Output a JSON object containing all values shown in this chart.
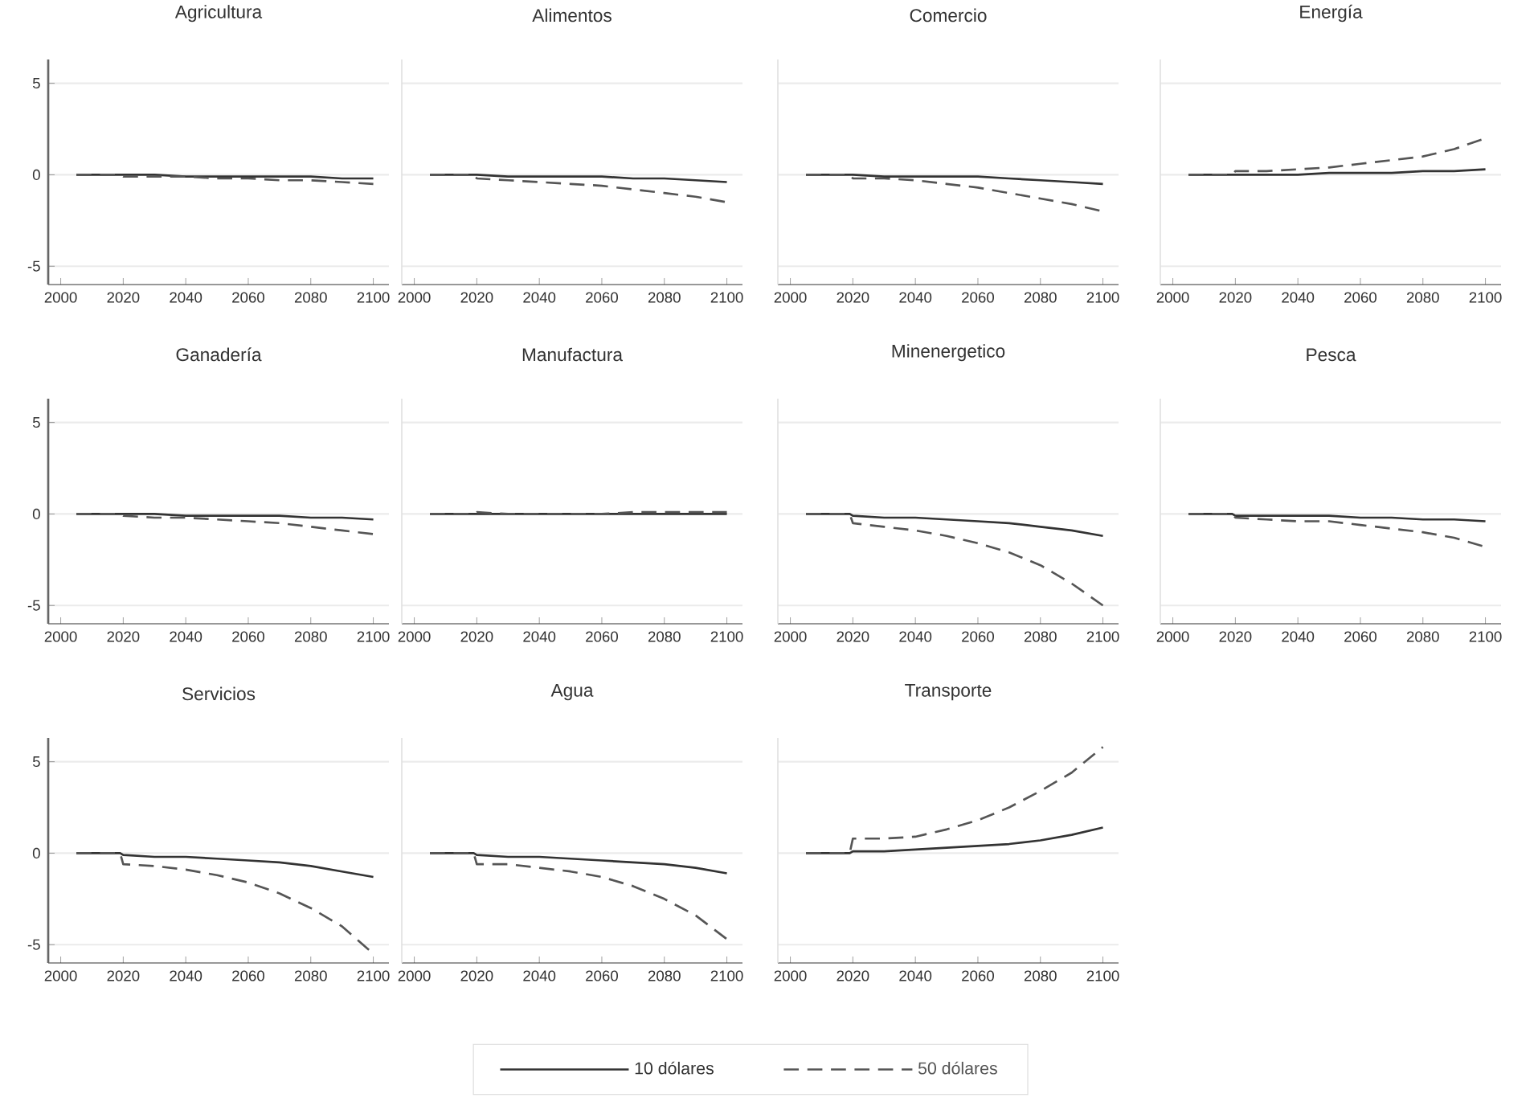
{
  "chart_data": [
    {
      "type": "line",
      "title": "Agricultura",
      "x": [
        2005,
        2019,
        2020,
        2030,
        2040,
        2050,
        2060,
        2070,
        2080,
        2090,
        2100
      ],
      "xlim": [
        1996,
        2105
      ],
      "ylim": [
        -6,
        6.3
      ],
      "xticks": [
        2000,
        2020,
        2040,
        2060,
        2080,
        2100
      ],
      "yticks": [
        -5,
        0,
        5
      ],
      "grid": "y",
      "series": [
        {
          "color": "#333333",
          "line_style": "solid",
          "values": [
            0,
            0,
            0,
            0,
            -0.1,
            -0.1,
            -0.1,
            -0.1,
            -0.1,
            -0.2,
            -0.2
          ]
        },
        {
          "color": "#555555",
          "line_style": "dashed",
          "values": [
            0,
            0,
            -0.1,
            -0.1,
            -0.1,
            -0.2,
            -0.2,
            -0.3,
            -0.3,
            -0.4,
            -0.5
          ]
        }
      ]
    },
    {
      "type": "line",
      "title": "Alimentos",
      "x": [
        2005,
        2019,
        2020,
        2030,
        2040,
        2050,
        2060,
        2070,
        2080,
        2090,
        2100
      ],
      "xlim": [
        1996,
        2105
      ],
      "ylim": [
        -6,
        6.3
      ],
      "xticks": [
        2000,
        2020,
        2040,
        2060,
        2080,
        2100
      ],
      "yticks": [
        -5,
        0,
        5
      ],
      "grid": "y",
      "tick_labels": "x",
      "series": [
        {
          "color": "#333333",
          "line_style": "solid",
          "values": [
            0,
            0,
            0,
            -0.1,
            -0.1,
            -0.1,
            -0.1,
            -0.2,
            -0.2,
            -0.3,
            -0.4
          ]
        },
        {
          "color": "#555555",
          "line_style": "dashed",
          "values": [
            0,
            0,
            -0.2,
            -0.3,
            -0.4,
            -0.5,
            -0.6,
            -0.8,
            -1.0,
            -1.2,
            -1.5
          ]
        }
      ]
    },
    {
      "type": "line",
      "title": "Comercio",
      "x": [
        2005,
        2019,
        2020,
        2030,
        2040,
        2050,
        2060,
        2070,
        2080,
        2090,
        2100
      ],
      "xlim": [
        1996,
        2105
      ],
      "ylim": [
        -6,
        6.3
      ],
      "xticks": [
        2000,
        2020,
        2040,
        2060,
        2080,
        2100
      ],
      "yticks": [
        -5,
        0,
        5
      ],
      "grid": "y",
      "tick_labels": "x",
      "series": [
        {
          "color": "#333333",
          "line_style": "solid",
          "values": [
            0,
            0,
            0,
            -0.1,
            -0.1,
            -0.1,
            -0.1,
            -0.2,
            -0.3,
            -0.4,
            -0.5
          ]
        },
        {
          "color": "#555555",
          "line_style": "dashed",
          "values": [
            0,
            0,
            -0.2,
            -0.2,
            -0.3,
            -0.5,
            -0.7,
            -1.0,
            -1.3,
            -1.6,
            -2.0
          ]
        }
      ]
    },
    {
      "type": "line",
      "title": "Energía",
      "x": [
        2005,
        2019,
        2020,
        2030,
        2040,
        2050,
        2060,
        2070,
        2080,
        2090,
        2100
      ],
      "xlim": [
        1996,
        2105
      ],
      "ylim": [
        -6,
        6.3
      ],
      "xticks": [
        2000,
        2020,
        2040,
        2060,
        2080,
        2100
      ],
      "yticks": [
        -5,
        0,
        5
      ],
      "grid": "y",
      "tick_labels": "x",
      "series": [
        {
          "color": "#333333",
          "line_style": "solid",
          "values": [
            0,
            0,
            0,
            0,
            0,
            0.1,
            0.1,
            0.1,
            0.2,
            0.2,
            0.3
          ]
        },
        {
          "color": "#555555",
          "line_style": "dashed",
          "values": [
            0,
            0,
            0.2,
            0.2,
            0.3,
            0.4,
            0.6,
            0.8,
            1.0,
            1.4,
            2.0
          ]
        }
      ]
    },
    {
      "type": "line",
      "title": "Ganadería",
      "x": [
        2005,
        2019,
        2020,
        2030,
        2040,
        2050,
        2060,
        2070,
        2080,
        2090,
        2100
      ],
      "xlim": [
        1996,
        2105
      ],
      "ylim": [
        -6,
        6.3
      ],
      "xticks": [
        2000,
        2020,
        2040,
        2060,
        2080,
        2100
      ],
      "yticks": [
        -5,
        0,
        5
      ],
      "grid": "y",
      "series": [
        {
          "color": "#333333",
          "line_style": "solid",
          "values": [
            0,
            0,
            0,
            0,
            -0.1,
            -0.1,
            -0.1,
            -0.1,
            -0.2,
            -0.2,
            -0.3
          ]
        },
        {
          "color": "#555555",
          "line_style": "dashed",
          "values": [
            0,
            0,
            -0.1,
            -0.2,
            -0.2,
            -0.3,
            -0.4,
            -0.5,
            -0.7,
            -0.9,
            -1.1
          ]
        }
      ]
    },
    {
      "type": "line",
      "title": "Manufactura",
      "x": [
        2005,
        2019,
        2020,
        2030,
        2040,
        2050,
        2060,
        2070,
        2080,
        2090,
        2100
      ],
      "xlim": [
        1996,
        2105
      ],
      "ylim": [
        -6,
        6.3
      ],
      "xticks": [
        2000,
        2020,
        2040,
        2060,
        2080,
        2100
      ],
      "yticks": [
        -5,
        0,
        5
      ],
      "grid": "y",
      "tick_labels": "x",
      "series": [
        {
          "color": "#333333",
          "line_style": "solid",
          "values": [
            0,
            0,
            0,
            0,
            0,
            0,
            0,
            0,
            0,
            0,
            0
          ]
        },
        {
          "color": "#555555",
          "line_style": "dashed",
          "values": [
            0,
            0,
            0.1,
            0,
            0,
            0,
            0,
            0.1,
            0.1,
            0.1,
            0.1
          ]
        }
      ]
    },
    {
      "type": "line",
      "title": "Minenergetico",
      "x": [
        2005,
        2019,
        2020,
        2030,
        2040,
        2050,
        2060,
        2070,
        2080,
        2090,
        2100
      ],
      "xlim": [
        1996,
        2105
      ],
      "ylim": [
        -6,
        6.3
      ],
      "xticks": [
        2000,
        2020,
        2040,
        2060,
        2080,
        2100
      ],
      "yticks": [
        -5,
        0,
        5
      ],
      "grid": "y",
      "tick_labels": "x",
      "series": [
        {
          "color": "#333333",
          "line_style": "solid",
          "values": [
            0,
            0,
            -0.1,
            -0.2,
            -0.2,
            -0.3,
            -0.4,
            -0.5,
            -0.7,
            -0.9,
            -1.2
          ]
        },
        {
          "color": "#555555",
          "line_style": "dashed",
          "values": [
            0,
            0,
            -0.5,
            -0.7,
            -0.9,
            -1.2,
            -1.6,
            -2.1,
            -2.8,
            -3.8,
            -5.0
          ]
        }
      ]
    },
    {
      "type": "line",
      "title": "Pesca",
      "x": [
        2005,
        2019,
        2020,
        2030,
        2040,
        2050,
        2060,
        2070,
        2080,
        2090,
        2100
      ],
      "xlim": [
        1996,
        2105
      ],
      "ylim": [
        -6,
        6.3
      ],
      "xticks": [
        2000,
        2020,
        2040,
        2060,
        2080,
        2100
      ],
      "yticks": [
        -5,
        0,
        5
      ],
      "grid": "y",
      "tick_labels": "x",
      "series": [
        {
          "color": "#333333",
          "line_style": "solid",
          "values": [
            0,
            0,
            -0.1,
            -0.1,
            -0.1,
            -0.1,
            -0.2,
            -0.2,
            -0.3,
            -0.3,
            -0.4
          ]
        },
        {
          "color": "#555555",
          "line_style": "dashed",
          "values": [
            0,
            0,
            -0.2,
            -0.3,
            -0.4,
            -0.4,
            -0.6,
            -0.8,
            -1.0,
            -1.3,
            -1.8
          ]
        }
      ]
    },
    {
      "type": "line",
      "title": "Servicios",
      "x": [
        2005,
        2019,
        2020,
        2030,
        2040,
        2050,
        2060,
        2070,
        2080,
        2090,
        2100
      ],
      "xlim": [
        1996,
        2105
      ],
      "ylim": [
        -6,
        6.3
      ],
      "xticks": [
        2000,
        2020,
        2040,
        2060,
        2080,
        2100
      ],
      "yticks": [
        -5,
        0,
        5
      ],
      "grid": "y",
      "series": [
        {
          "color": "#333333",
          "line_style": "solid",
          "values": [
            0,
            0,
            -0.1,
            -0.2,
            -0.2,
            -0.3,
            -0.4,
            -0.5,
            -0.7,
            -1.0,
            -1.3
          ]
        },
        {
          "color": "#555555",
          "line_style": "dashed",
          "values": [
            0,
            0,
            -0.6,
            -0.7,
            -0.9,
            -1.2,
            -1.6,
            -2.2,
            -3.0,
            -4.0,
            -5.5
          ]
        }
      ]
    },
    {
      "type": "line",
      "title": "Agua",
      "x": [
        2005,
        2019,
        2020,
        2030,
        2040,
        2050,
        2060,
        2070,
        2080,
        2090,
        2100
      ],
      "xlim": [
        1996,
        2105
      ],
      "ylim": [
        -6,
        6.3
      ],
      "xticks": [
        2000,
        2020,
        2040,
        2060,
        2080,
        2100
      ],
      "yticks": [
        -5,
        0,
        5
      ],
      "grid": "y",
      "tick_labels": "x",
      "series": [
        {
          "color": "#333333",
          "line_style": "solid",
          "values": [
            0,
            0,
            -0.1,
            -0.2,
            -0.2,
            -0.3,
            -0.4,
            -0.5,
            -0.6,
            -0.8,
            -1.1
          ]
        },
        {
          "color": "#555555",
          "line_style": "dashed",
          "values": [
            0,
            0,
            -0.6,
            -0.6,
            -0.8,
            -1.0,
            -1.3,
            -1.8,
            -2.5,
            -3.4,
            -4.7
          ]
        }
      ]
    },
    {
      "type": "line",
      "title": "Transporte",
      "x": [
        2005,
        2019,
        2020,
        2030,
        2040,
        2050,
        2060,
        2070,
        2080,
        2090,
        2100
      ],
      "xlim": [
        1996,
        2105
      ],
      "ylim": [
        -6,
        6.3
      ],
      "xticks": [
        2000,
        2020,
        2040,
        2060,
        2080,
        2100
      ],
      "yticks": [
        -5,
        0,
        5
      ],
      "grid": "y",
      "tick_labels": "x",
      "legend": "bottom",
      "series": [
        {
          "name": "10 dólares",
          "color": "#333333",
          "line_style": "solid",
          "values": [
            0,
            0,
            0.1,
            0.1,
            0.2,
            0.3,
            0.4,
            0.5,
            0.7,
            1.0,
            1.4
          ]
        },
        {
          "name": "50 dólares",
          "color": "#555555",
          "line_style": "dashed",
          "values": [
            0,
            0,
            0.8,
            0.8,
            0.9,
            1.3,
            1.8,
            2.5,
            3.4,
            4.4,
            5.8
          ]
        }
      ]
    }
  ]
}
